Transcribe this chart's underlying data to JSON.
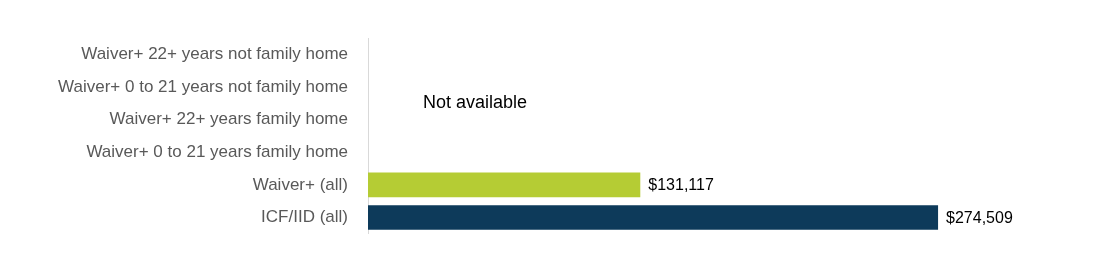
{
  "chart_data": {
    "type": "bar",
    "orientation": "horizontal",
    "categories": [
      "Waiver+ 22+ years not family home",
      "Waiver+ 0 to 21 years not family home",
      "Waiver+ 22+ years family home",
      "Waiver+ 0 to 21 years family home",
      "Waiver+ (all)",
      "ICF/IID (all)"
    ],
    "values": [
      null,
      null,
      null,
      null,
      131117,
      274509
    ],
    "colors": [
      "#b5cc34",
      "#b5cc34",
      "#b5cc34",
      "#b5cc34",
      "#b5cc34",
      "#0d3a5a"
    ],
    "value_labels": [
      null,
      null,
      null,
      null,
      "$131,117",
      "$274,509"
    ],
    "annotations": [
      "Not available"
    ],
    "grid": false,
    "legend": false
  }
}
